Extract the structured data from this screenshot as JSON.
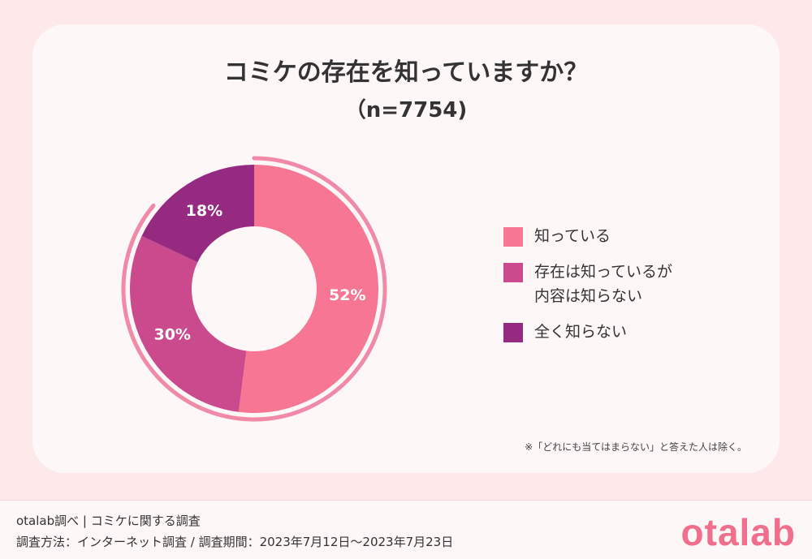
{
  "header": {
    "title": "コミケの存在を知っていますか？",
    "subtitle": "（n=7754)"
  },
  "chart_data": {
    "type": "pie",
    "title": "コミケの存在を知っていますか？",
    "sample_size": "n=7754",
    "categories": [
      "知っている",
      "存在は知っているが\n内容は知らない",
      "全く知らない"
    ],
    "values": [
      52,
      30,
      18
    ],
    "colors": [
      "#f67694",
      "#cb4a8d",
      "#952a80"
    ],
    "unit": "%",
    "legend_position": "right"
  },
  "note": "※「どれにも当てはまらない」と答えた人は除く。",
  "footer": {
    "line1": "otalab調べ | コミケに関する調査",
    "line2": "調査方法：インターネット調査 / 調査期間：2023年7月12日～2023年7月23日",
    "logo": "otalab"
  }
}
